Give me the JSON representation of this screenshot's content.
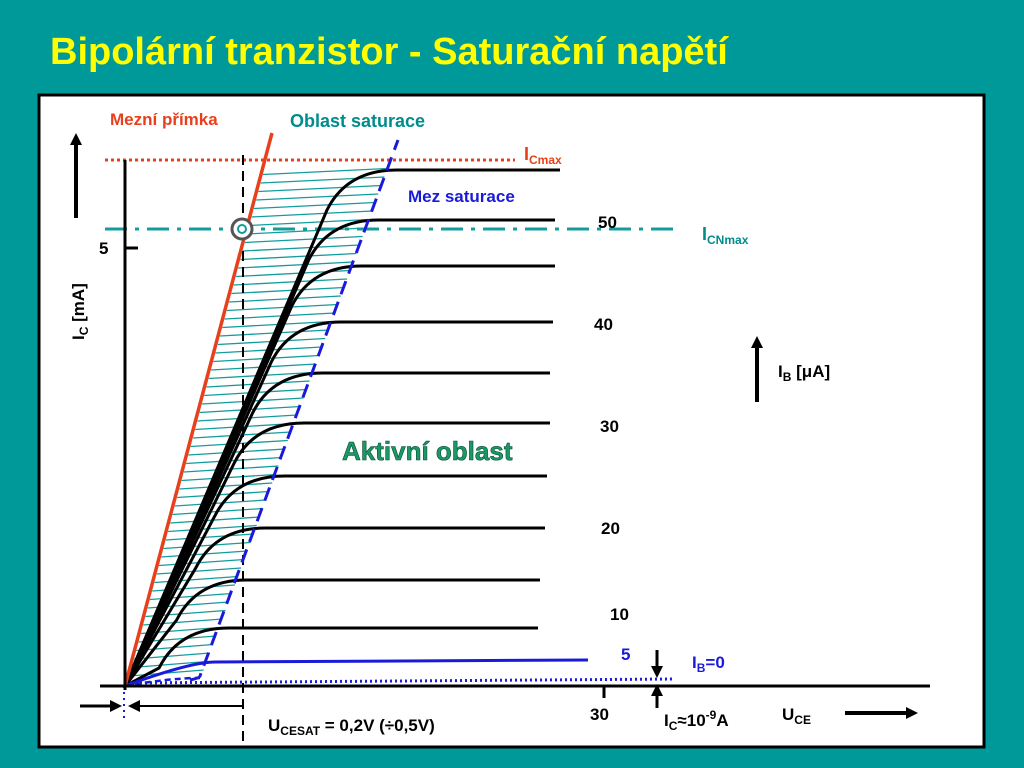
{
  "title": "Bipolární tranzistor - Saturační napětí",
  "labels": {
    "limit_line": "Mezní přímka",
    "saturation_region": "Oblast saturace",
    "saturation_limit": "Mez saturace",
    "active_region": "Aktivní oblast",
    "ic_max": {
      "main": "I",
      "sub": "Cmax"
    },
    "icn_max": {
      "main": "I",
      "sub": "CNmax"
    },
    "y_axis": {
      "main": "I",
      "sub": "C",
      "rest": " [mA]"
    },
    "y_tick": "5",
    "x_tick": "30",
    "ib_axis": {
      "main": "I",
      "sub": "B",
      "rest": " [μA]"
    },
    "ib_zero": {
      "main": "I",
      "sub": "B",
      "rest": "=0"
    },
    "ic_leak": {
      "main": "I",
      "sub": "C",
      "rest": "≈10",
      "sup": "-9",
      "end": "A"
    },
    "uce": {
      "main": "U",
      "sub": "CE"
    },
    "ucesat": {
      "main": "U",
      "sub": "CESAT",
      "rest": " = 0,2V (÷0,5V)"
    }
  },
  "curve_labels": [
    "50",
    "40",
    "30",
    "20",
    "10",
    "5"
  ]
}
